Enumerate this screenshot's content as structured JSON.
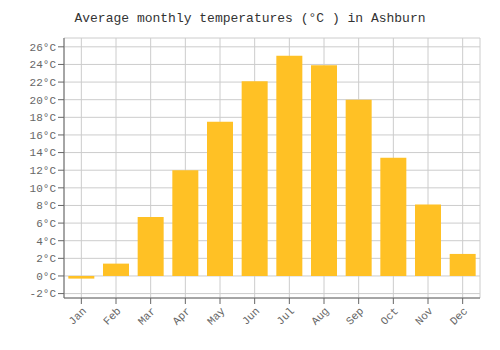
{
  "chart_data": {
    "type": "bar",
    "title": "Average monthly temperatures (°C ) in Ashburn",
    "categories": [
      "Jan",
      "Feb",
      "Mar",
      "Apr",
      "May",
      "Jun",
      "Jul",
      "Aug",
      "Sep",
      "Oct",
      "Nov",
      "Dec"
    ],
    "values": [
      -0.3,
      1.4,
      6.7,
      12.0,
      17.5,
      22.1,
      25.0,
      23.9,
      20.0,
      13.4,
      8.1,
      2.5
    ],
    "color": "#FFC125",
    "ylim": [
      -2.5,
      27
    ],
    "yticks": [
      {
        "value": -2,
        "label": "-2°C"
      },
      {
        "value": 0,
        "label": "0°C"
      },
      {
        "value": 2,
        "label": "2°C"
      },
      {
        "value": 4,
        "label": "4°C"
      },
      {
        "value": 6,
        "label": "6°C"
      },
      {
        "value": 8,
        "label": "8°C"
      },
      {
        "value": 10,
        "label": "10°C"
      },
      {
        "value": 12,
        "label": "12°C"
      },
      {
        "value": 14,
        "label": "14°C"
      },
      {
        "value": 16,
        "label": "16°C"
      },
      {
        "value": 18,
        "label": "18°C"
      },
      {
        "value": 20,
        "label": "20°C"
      },
      {
        "value": 22,
        "label": "22°C"
      },
      {
        "value": 24,
        "label": "24°C"
      },
      {
        "value": 26,
        "label": "26°C"
      }
    ],
    "grid": true
  }
}
